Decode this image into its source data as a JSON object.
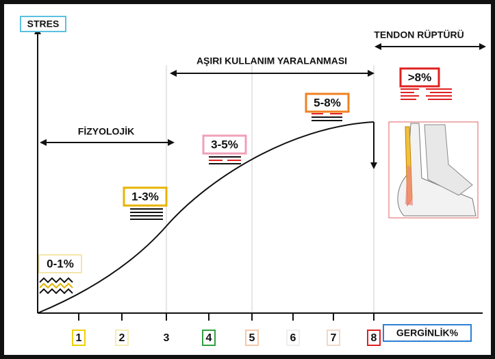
{
  "y_axis_label": "STRES",
  "x_axis_label": "GERGİNLİK%",
  "x_ticks": [
    "1",
    "2",
    "3",
    "4",
    "5",
    "6",
    "7",
    "8"
  ],
  "regions": [
    {
      "label": "FİZYOLOJİK"
    },
    {
      "label": "AŞIRI KULLANIM YARALANMASI"
    },
    {
      "label": "TENDON RÜPTÜRÜ"
    }
  ],
  "stages": [
    {
      "label": "0-1%"
    },
    {
      "label": "1-3%"
    },
    {
      "label": "3-5%"
    },
    {
      "label": "5-8%"
    },
    {
      "label": ">8%"
    }
  ]
}
